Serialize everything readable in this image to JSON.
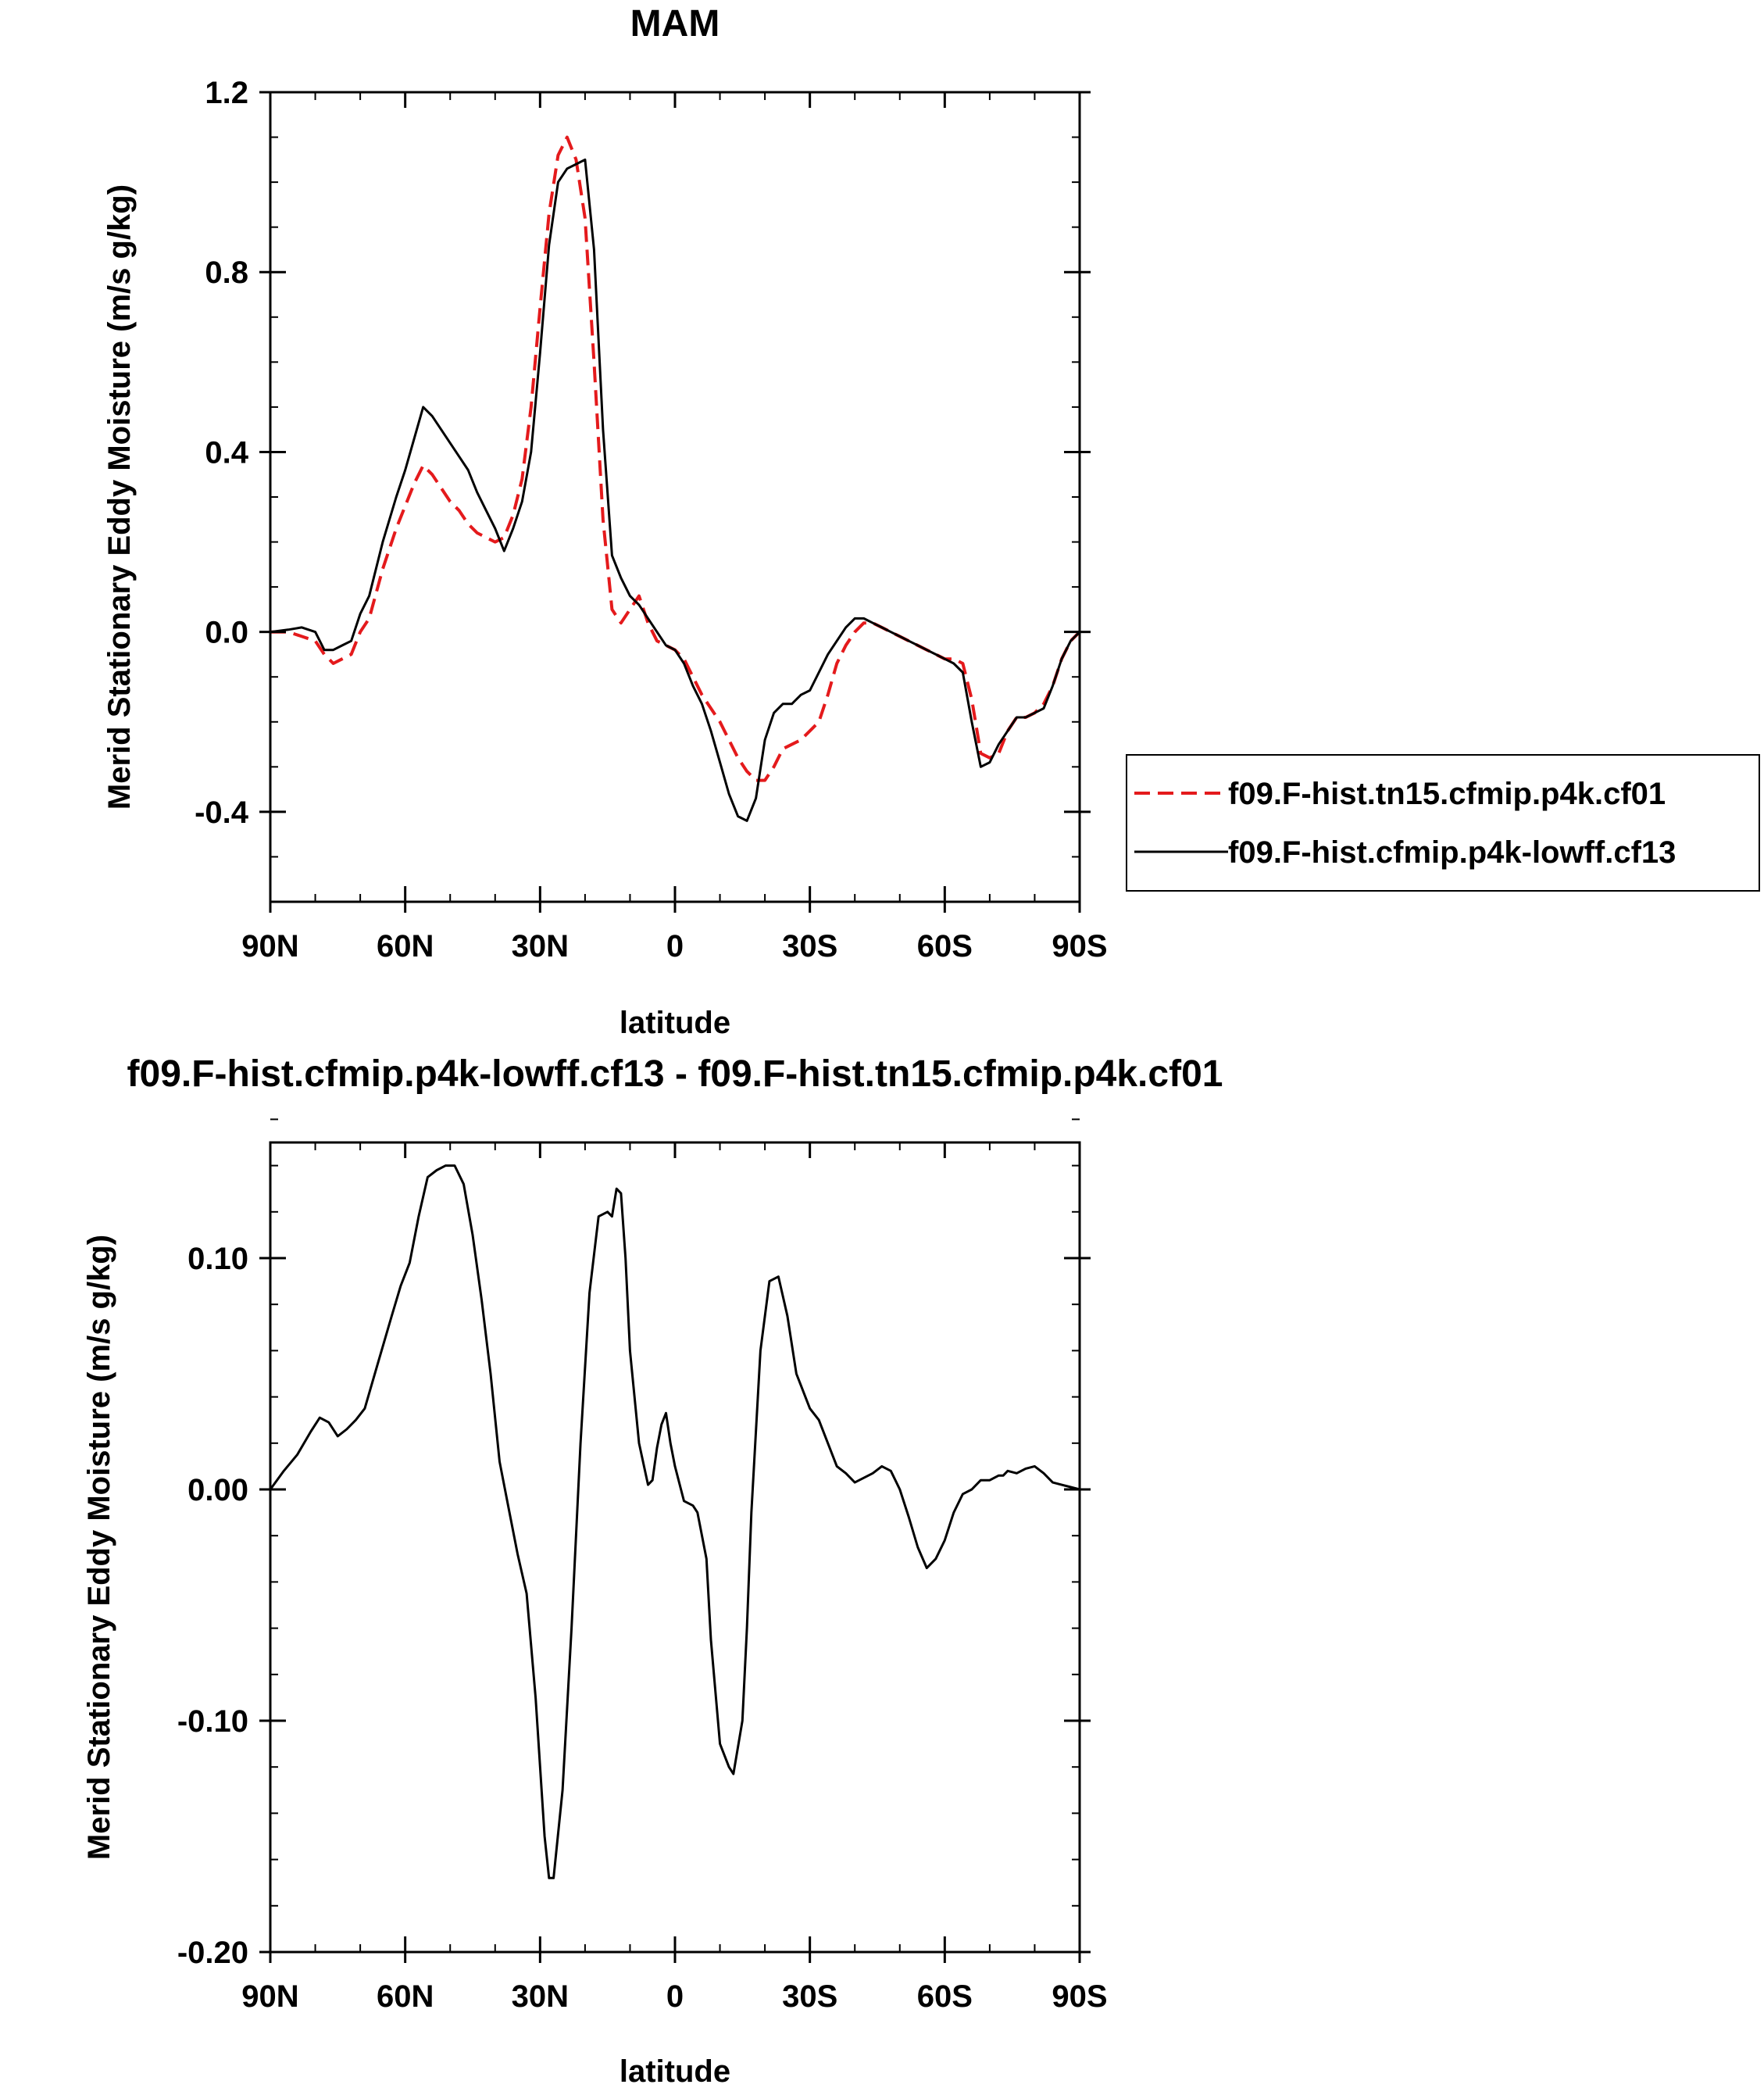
{
  "chart_data": [
    {
      "type": "line",
      "title": "MAM",
      "xlabel": "latitude",
      "ylabel": "Merid Stationary Eddy Moisture (m/s g/kg)",
      "xlim": [
        90,
        -90
      ],
      "ylim": [
        -0.6,
        1.2
      ],
      "x_ticks": [
        90,
        60,
        30,
        0,
        -30,
        -60,
        -90
      ],
      "x_tick_labels": [
        "90N",
        "60N",
        "30N",
        "0",
        "30S",
        "60S",
        "90S"
      ],
      "y_ticks": [
        -0.4,
        0.0,
        0.4,
        0.8,
        1.2
      ],
      "y_tick_labels": [
        "-0.4",
        "0.0",
        "0.4",
        "0.8",
        "1.2"
      ],
      "y_minor_step": 0.1,
      "x_minor_step": 10,
      "grid": false,
      "legend_position": "right",
      "series": [
        {
          "name": "f09.F-hist.tn15.cfmip.p4k.cf01",
          "color": "#e41a1c",
          "dash": "dashed",
          "x": [
            90,
            86,
            83,
            80,
            78,
            76,
            74,
            72,
            70,
            68,
            65,
            62,
            60,
            58,
            56,
            54,
            52,
            50,
            48,
            46,
            44,
            42,
            40,
            38,
            36,
            34,
            32,
            30,
            28,
            26,
            24,
            22,
            20,
            18,
            16,
            14,
            12,
            10,
            8,
            6,
            4,
            2,
            0,
            -2,
            -4,
            -6,
            -8,
            -10,
            -12,
            -14,
            -16,
            -18,
            -20,
            -22,
            -24,
            -26,
            -28,
            -30,
            -32,
            -34,
            -36,
            -38,
            -40,
            -42,
            -44,
            -46,
            -48,
            -50,
            -52,
            -54,
            -56,
            -58,
            -60,
            -62,
            -64,
            -66,
            -68,
            -70,
            -72,
            -74,
            -76,
            -78,
            -80,
            -82,
            -84,
            -86,
            -88,
            -90
          ],
          "y": [
            0.0,
            0.0,
            -0.01,
            -0.02,
            -0.05,
            -0.07,
            -0.06,
            -0.05,
            0.0,
            0.03,
            0.14,
            0.23,
            0.28,
            0.33,
            0.37,
            0.35,
            0.32,
            0.29,
            0.27,
            0.24,
            0.22,
            0.21,
            0.2,
            0.21,
            0.26,
            0.34,
            0.5,
            0.72,
            0.93,
            1.06,
            1.1,
            1.05,
            0.92,
            0.6,
            0.25,
            0.05,
            0.02,
            0.05,
            0.08,
            0.02,
            -0.02,
            -0.03,
            -0.04,
            -0.06,
            -0.1,
            -0.14,
            -0.17,
            -0.2,
            -0.24,
            -0.28,
            -0.31,
            -0.33,
            -0.33,
            -0.3,
            -0.26,
            -0.25,
            -0.24,
            -0.22,
            -0.2,
            -0.14,
            -0.07,
            -0.03,
            0.0,
            0.02,
            0.02,
            0.01,
            0.0,
            -0.01,
            -0.02,
            -0.03,
            -0.04,
            -0.05,
            -0.06,
            -0.06,
            -0.07,
            -0.15,
            -0.27,
            -0.28,
            -0.27,
            -0.22,
            -0.19,
            -0.19,
            -0.18,
            -0.16,
            -0.12,
            -0.06,
            -0.02,
            0.0
          ]
        },
        {
          "name": "f09.F-hist.cfmip.p4k-lowff.cf13",
          "color": "#000000",
          "dash": "solid",
          "x": [
            90,
            86,
            83,
            80,
            78,
            76,
            74,
            72,
            70,
            68,
            65,
            62,
            60,
            58,
            56,
            54,
            52,
            50,
            48,
            46,
            44,
            42,
            40,
            38,
            36,
            34,
            32,
            30,
            28,
            26,
            24,
            22,
            20,
            18,
            16,
            14,
            12,
            10,
            8,
            6,
            4,
            2,
            0,
            -2,
            -4,
            -6,
            -8,
            -10,
            -12,
            -14,
            -16,
            -18,
            -20,
            -22,
            -24,
            -26,
            -28,
            -30,
            -32,
            -34,
            -36,
            -38,
            -40,
            -42,
            -44,
            -46,
            -48,
            -50,
            -52,
            -54,
            -56,
            -58,
            -60,
            -62,
            -64,
            -66,
            -68,
            -70,
            -72,
            -74,
            -76,
            -78,
            -80,
            -82,
            -84,
            -86,
            -88,
            -90
          ],
          "y": [
            0.0,
            0.005,
            0.01,
            0.0,
            -0.04,
            -0.04,
            -0.03,
            -0.02,
            0.04,
            0.08,
            0.2,
            0.3,
            0.36,
            0.43,
            0.5,
            0.48,
            0.45,
            0.42,
            0.39,
            0.36,
            0.31,
            0.27,
            0.23,
            0.18,
            0.23,
            0.29,
            0.4,
            0.62,
            0.86,
            1.0,
            1.03,
            1.04,
            1.05,
            0.85,
            0.45,
            0.17,
            0.12,
            0.08,
            0.06,
            0.03,
            0.0,
            -0.03,
            -0.04,
            -0.07,
            -0.12,
            -0.16,
            -0.22,
            -0.29,
            -0.36,
            -0.41,
            -0.42,
            -0.37,
            -0.24,
            -0.18,
            -0.16,
            -0.16,
            -0.14,
            -0.13,
            -0.09,
            -0.05,
            -0.02,
            0.01,
            0.03,
            0.03,
            0.02,
            0.01,
            0.0,
            -0.01,
            -0.02,
            -0.03,
            -0.04,
            -0.05,
            -0.06,
            -0.07,
            -0.09,
            -0.2,
            -0.3,
            -0.29,
            -0.25,
            -0.22,
            -0.19,
            -0.19,
            -0.18,
            -0.17,
            -0.12,
            -0.06,
            -0.02,
            0.0
          ]
        }
      ]
    },
    {
      "type": "line",
      "title": "f09.F-hist.cfmip.p4k-lowff.cf13 - f09.F-hist.tn15.cfmip.p4k.cf01",
      "xlabel": "latitude",
      "ylabel": "Merid Stationary Eddy Moisture (m/s g/kg)",
      "xlim": [
        90,
        -90
      ],
      "ylim": [
        -0.2,
        0.15
      ],
      "x_ticks": [
        90,
        60,
        30,
        0,
        -30,
        -60,
        -90
      ],
      "x_tick_labels": [
        "90N",
        "60N",
        "30N",
        "0",
        "30S",
        "60S",
        "90S"
      ],
      "y_ticks": [
        -0.2,
        -0.1,
        0.0,
        0.1
      ],
      "y_tick_labels": [
        "-0.20",
        "-0.10",
        "0.00",
        "0.10"
      ],
      "y_minor_step": 0.02,
      "x_minor_step": 10,
      "grid": false,
      "series": [
        {
          "color": "#000000",
          "dash": "solid",
          "x": [
            90,
            87,
            84,
            81,
            79,
            77,
            75,
            73,
            71,
            69,
            66,
            63,
            61,
            59,
            57,
            55,
            53,
            51,
            49,
            47,
            45,
            43,
            41,
            39,
            37,
            35,
            33,
            31,
            29,
            28,
            27,
            25,
            23,
            21,
            19,
            17,
            15,
            14,
            13,
            12,
            11,
            10,
            8,
            6,
            5,
            4,
            3,
            2,
            1,
            0,
            -2,
            -4,
            -5,
            -7,
            -8,
            -10,
            -12,
            -13,
            -15,
            -16,
            -17,
            -19,
            -21,
            -23,
            -25,
            -27,
            -28,
            -29,
            -30,
            -32,
            -34,
            -36,
            -38,
            -40,
            -42,
            -44,
            -46,
            -48,
            -50,
            -52,
            -54,
            -56,
            -58,
            -60,
            -62,
            -64,
            -66,
            -68,
            -70,
            -72,
            -73,
            -74,
            -76,
            -78,
            -80,
            -82,
            -84,
            -86,
            -88,
            -90
          ],
          "y": [
            0.0,
            0.008,
            0.015,
            0.025,
            0.031,
            0.029,
            0.023,
            0.026,
            0.03,
            0.035,
            0.055,
            0.075,
            0.088,
            0.098,
            0.118,
            0.135,
            0.138,
            0.14,
            0.14,
            0.132,
            0.11,
            0.082,
            0.05,
            0.012,
            -0.008,
            -0.028,
            -0.045,
            -0.09,
            -0.15,
            -0.168,
            -0.168,
            -0.13,
            -0.06,
            0.02,
            0.085,
            0.118,
            0.12,
            0.118,
            0.13,
            0.128,
            0.1,
            0.06,
            0.02,
            0.002,
            0.004,
            0.018,
            0.028,
            0.033,
            0.02,
            0.01,
            -0.005,
            -0.007,
            -0.01,
            -0.03,
            -0.065,
            -0.11,
            -0.12,
            -0.123,
            -0.1,
            -0.06,
            -0.01,
            0.06,
            0.09,
            0.092,
            0.075,
            0.05,
            0.045,
            0.04,
            0.035,
            0.03,
            0.02,
            0.01,
            0.007,
            0.003,
            0.005,
            0.007,
            0.01,
            0.008,
            0.0,
            -0.012,
            -0.025,
            -0.034,
            -0.03,
            -0.022,
            -0.01,
            -0.002,
            0.0,
            0.004,
            0.004,
            0.006,
            0.006,
            0.008,
            0.007,
            0.009,
            0.01,
            0.007,
            0.003,
            0.002,
            0.001,
            0.0
          ]
        }
      ]
    }
  ]
}
